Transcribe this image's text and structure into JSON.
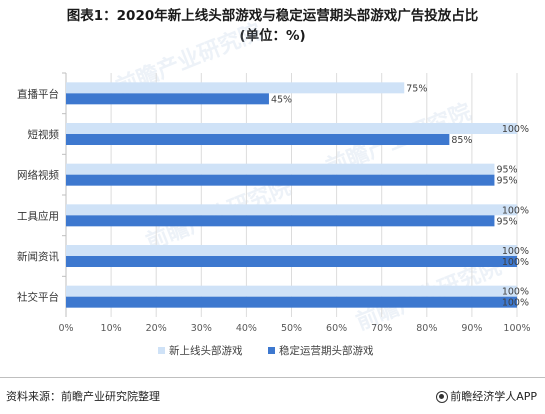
{
  "title_line1": "图表1：2020年新上线头部游戏与稳定运营期头部游戏广告投放占比",
  "title_line2": "(单位：%)",
  "source_text": "资料来源：前瞻产业研究院整理",
  "brand_text": "前瞻经济学人APP",
  "watermark_text": "前瞻产业研究院",
  "colors": {
    "new_launch": "#cfe2f7",
    "stable": "#3d78cf",
    "grid": "#dcdcdc",
    "axis_text": "#595959"
  },
  "chart_data": {
    "type": "bar",
    "orientation": "horizontal",
    "categories": [
      "直播平台",
      "短视频",
      "网络视频",
      "工具应用",
      "新闻资讯",
      "社交平台"
    ],
    "series": [
      {
        "name": "新上线头部游戏",
        "values": [
          75,
          100,
          95,
          100,
          100,
          100
        ]
      },
      {
        "name": "稳定运营期头部游戏",
        "values": [
          45,
          85,
          95,
          95,
          100,
          100
        ]
      }
    ],
    "data_labels": [
      [
        "75%",
        "100%",
        "95%",
        "100%",
        "100%",
        "100%"
      ],
      [
        "45%",
        "85%",
        "95%",
        "95%",
        "100%",
        "100%"
      ]
    ],
    "xlim": [
      0,
      100
    ],
    "xticks": [
      "0%",
      "10%",
      "20%",
      "30%",
      "40%",
      "50%",
      "60%",
      "70%",
      "80%",
      "90%",
      "100%"
    ],
    "grid": true,
    "legend_position": "bottom"
  }
}
